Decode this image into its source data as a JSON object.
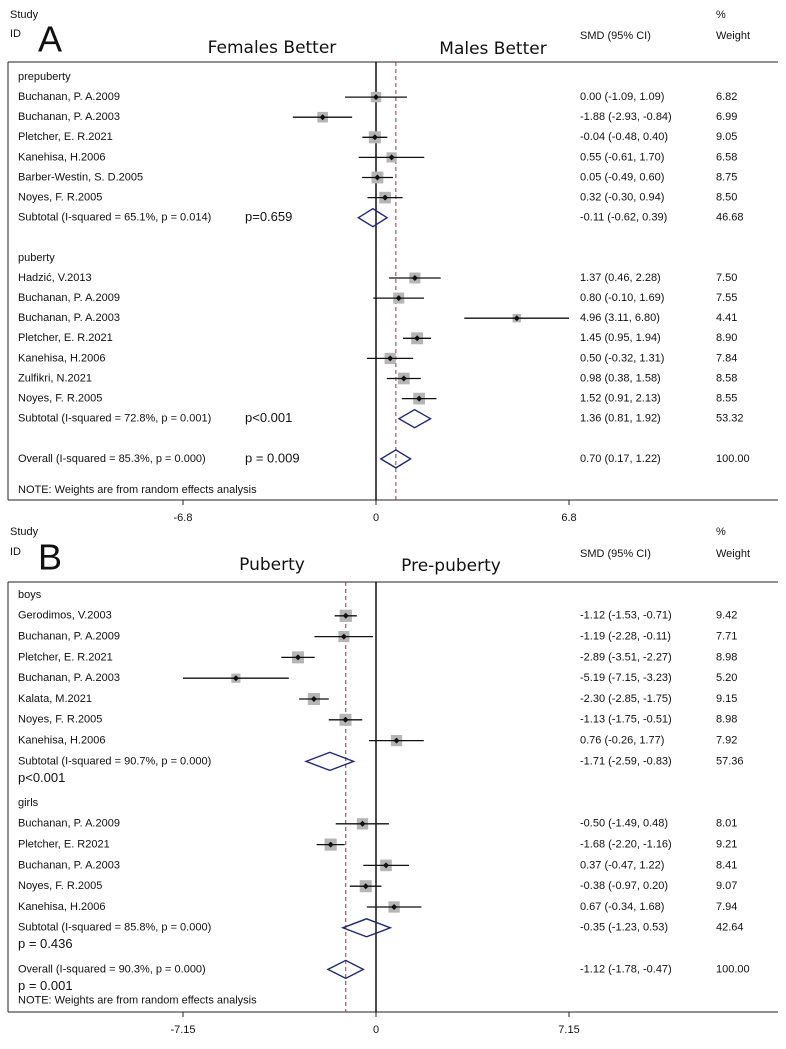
{
  "chart_data": [
    {
      "type": "forest",
      "panel": "A",
      "study_header": "Study",
      "id_header": "ID",
      "effect_header": "SMD (95% CI)",
      "weight_header_top": "%",
      "weight_header": "Weight",
      "left_label": "Females Better",
      "right_label": "Males Better",
      "xlim": [
        -6.8,
        6.8
      ],
      "xticks": [
        -6.8,
        0,
        6.8
      ],
      "groups": [
        {
          "name": "prepuberty",
          "studies": [
            {
              "name": "Buchanan, P. A.2009",
              "smd": 0,
              "lower": -1.09,
              "upper": 1.09,
              "ci_label": "0.00 (-1.09, 1.09)",
              "weight": 6.82,
              "weight_label": "6.82"
            },
            {
              "name": "Buchanan, P. A.2003",
              "smd": -1.88,
              "lower": -2.93,
              "upper": -0.84,
              "ci_label": "-1.88 (-2.93, -0.84)",
              "weight": 6.99,
              "weight_label": "6.99"
            },
            {
              "name": "Pletcher, E. R.2021",
              "smd": -0.04,
              "lower": -0.48,
              "upper": 0.4,
              "ci_label": "-0.04 (-0.48, 0.40)",
              "weight": 9.05,
              "weight_label": "9.05"
            },
            {
              "name": "Kanehisa, H.2006",
              "smd": 0.55,
              "lower": -0.61,
              "upper": 1.7,
              "ci_label": "0.55 (-0.61, 1.70)",
              "weight": 6.58,
              "weight_label": "6.58"
            },
            {
              "name": "Barber-Westin, S. D.2005",
              "smd": 0.05,
              "lower": -0.49,
              "upper": 0.6,
              "ci_label": "0.05 (-0.49, 0.60)",
              "weight": 8.75,
              "weight_label": "8.75"
            },
            {
              "name": "Noyes, F. R.2005",
              "smd": 0.32,
              "lower": -0.3,
              "upper": 0.94,
              "ci_label": "0.32 (-0.30, 0.94)",
              "weight": 8.5,
              "weight_label": "8.50"
            }
          ],
          "subtotal": {
            "label": "Subtotal  (I-squared = 65.1%, p = 0.014)",
            "p_label": "p=0.659",
            "smd": -0.11,
            "lower": -0.62,
            "upper": 0.39,
            "ci_label": "-0.11 (-0.62, 0.39)",
            "weight": 46.68,
            "weight_label": "46.68"
          }
        },
        {
          "name": "puberty",
          "studies": [
            {
              "name": "Hadzić, V.2013",
              "smd": 1.37,
              "lower": 0.46,
              "upper": 2.28,
              "ci_label": "1.37 (0.46, 2.28)",
              "weight": 7.5,
              "weight_label": "7.50"
            },
            {
              "name": "Buchanan, P. A.2009",
              "smd": 0.8,
              "lower": -0.1,
              "upper": 1.69,
              "ci_label": "0.80 (-0.10, 1.69)",
              "weight": 7.55,
              "weight_label": "7.55"
            },
            {
              "name": "Buchanan, P. A.2003",
              "smd": 4.96,
              "lower": 3.11,
              "upper": 6.8,
              "ci_label": "4.96 (3.11, 6.80)",
              "weight": 4.41,
              "weight_label": "4.41"
            },
            {
              "name": "Pletcher, E. R.2021",
              "smd": 1.45,
              "lower": 0.95,
              "upper": 1.94,
              "ci_label": "1.45 (0.95, 1.94)",
              "weight": 8.9,
              "weight_label": "8.90"
            },
            {
              "name": "Kanehisa, H.2006",
              "smd": 0.5,
              "lower": -0.32,
              "upper": 1.31,
              "ci_label": "0.50 (-0.32, 1.31)",
              "weight": 7.84,
              "weight_label": "7.84"
            },
            {
              "name": "Zulfikri, N.2021",
              "smd": 0.98,
              "lower": 0.38,
              "upper": 1.58,
              "ci_label": "0.98 (0.38, 1.58)",
              "weight": 8.58,
              "weight_label": "8.58"
            },
            {
              "name": "Noyes, F. R.2005",
              "smd": 1.52,
              "lower": 0.91,
              "upper": 2.13,
              "ci_label": "1.52 (0.91, 2.13)",
              "weight": 8.55,
              "weight_label": "8.55"
            }
          ],
          "subtotal": {
            "label": "Subtotal  (I-squared = 72.8%, p = 0.001)",
            "p_label": "p<0.001",
            "smd": 1.36,
            "lower": 0.81,
            "upper": 1.92,
            "ci_label": "1.36 (0.81, 1.92)",
            "weight": 53.32,
            "weight_label": "53.32"
          }
        }
      ],
      "overall": {
        "label": "Overall  (I-squared = 85.3%, p = 0.000)",
        "p_label": "p = 0.009",
        "smd": 0.7,
        "lower": 0.17,
        "upper": 1.22,
        "ci_label": "0.70 (0.17, 1.22)",
        "weight": 100,
        "weight_label": "100.00"
      },
      "note": "NOTE: Weights are from random effects analysis"
    },
    {
      "type": "forest",
      "panel": "B",
      "study_header": "Study",
      "id_header": "ID",
      "effect_header": "SMD (95% CI)",
      "weight_header_top": "%",
      "weight_header": "Weight",
      "left_label": "Puberty",
      "right_label": "Pre-puberty",
      "xlim": [
        -7.15,
        7.15
      ],
      "xticks": [
        -7.15,
        0,
        7.15
      ],
      "groups": [
        {
          "name": "boys",
          "studies": [
            {
              "name": "Gerodimos, V.2003",
              "smd": -1.12,
              "lower": -1.53,
              "upper": -0.71,
              "ci_label": "-1.12 (-1.53, -0.71)",
              "weight": 9.42,
              "weight_label": "9.42"
            },
            {
              "name": "Buchanan, P. A.2009",
              "smd": -1.19,
              "lower": -2.28,
              "upper": -0.11,
              "ci_label": "-1.19 (-2.28, -0.11)",
              "weight": 7.71,
              "weight_label": "7.71"
            },
            {
              "name": "Pletcher, E. R.2021",
              "smd": -2.89,
              "lower": -3.51,
              "upper": -2.27,
              "ci_label": "-2.89 (-3.51, -2.27)",
              "weight": 8.98,
              "weight_label": "8.98"
            },
            {
              "name": "Buchanan, P. A.2003",
              "smd": -5.19,
              "lower": -7.15,
              "upper": -3.23,
              "ci_label": "-5.19 (-7.15, -3.23)",
              "weight": 5.2,
              "weight_label": "5.20"
            },
            {
              "name": "Kalata, M.2021",
              "smd": -2.3,
              "lower": -2.85,
              "upper": -1.75,
              "ci_label": "-2.30 (-2.85, -1.75)",
              "weight": 9.15,
              "weight_label": "9.15"
            },
            {
              "name": "Noyes, F. R.2005",
              "smd": -1.13,
              "lower": -1.75,
              "upper": -0.51,
              "ci_label": "-1.13 (-1.75, -0.51)",
              "weight": 8.98,
              "weight_label": "8.98"
            },
            {
              "name": "Kanehisa, H.2006",
              "smd": 0.76,
              "lower": -0.26,
              "upper": 1.77,
              "ci_label": "0.76 (-0.26, 1.77)",
              "weight": 7.92,
              "weight_label": "7.92"
            }
          ],
          "subtotal": {
            "label": "Subtotal  (I-squared = 90.7%, p = 0.000)",
            "p_label": "p<0.001",
            "smd": -1.71,
            "lower": -2.59,
            "upper": -0.83,
            "ci_label": "-1.71 (-2.59, -0.83)",
            "weight": 57.36,
            "weight_label": "57.36"
          }
        },
        {
          "name": "girls",
          "studies": [
            {
              "name": "Buchanan, P. A.2009",
              "smd": -0.5,
              "lower": -1.49,
              "upper": 0.48,
              "ci_label": "-0.50 (-1.49, 0.48)",
              "weight": 8.01,
              "weight_label": "8.01"
            },
            {
              "name": "Pletcher, E. R2021",
              "smd": -1.68,
              "lower": -2.2,
              "upper": -1.16,
              "ci_label": "-1.68 (-2.20, -1.16)",
              "weight": 9.21,
              "weight_label": "9.21"
            },
            {
              "name": "Buchanan, P. A.2003",
              "smd": 0.37,
              "lower": -0.47,
              "upper": 1.22,
              "ci_label": "0.37 (-0.47, 1.22)",
              "weight": 8.41,
              "weight_label": "8.41"
            },
            {
              "name": "Noyes, F. R.2005",
              "smd": -0.38,
              "lower": -0.97,
              "upper": 0.2,
              "ci_label": "-0.38 (-0.97, 0.20)",
              "weight": 9.07,
              "weight_label": "9.07"
            },
            {
              "name": "Kanehisa, H.2006",
              "smd": 0.67,
              "lower": -0.34,
              "upper": 1.68,
              "ci_label": "0.67 (-0.34, 1.68)",
              "weight": 7.94,
              "weight_label": "7.94"
            }
          ],
          "subtotal": {
            "label": "Subtotal  (I-squared = 85.8%, p = 0.000)",
            "p_label": "p = 0.436",
            "smd": -0.35,
            "lower": -1.23,
            "upper": 0.53,
            "ci_label": "-0.35 (-1.23, 0.53)",
            "weight": 42.64,
            "weight_label": "42.64"
          }
        }
      ],
      "overall": {
        "label": "Overall  (I-squared = 90.3%, p = 0.000)",
        "p_label": "p = 0.001",
        "smd": -1.12,
        "lower": -1.78,
        "upper": -0.47,
        "ci_label": "-1.12 (-1.78, -0.47)",
        "weight": 100,
        "weight_label": "100.00"
      },
      "note": "NOTE: Weights are from random effects analysis"
    }
  ]
}
